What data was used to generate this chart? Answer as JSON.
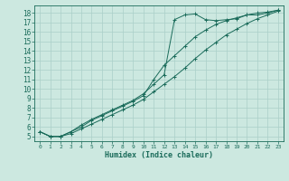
{
  "xlabel": "Humidex (Indice chaleur)",
  "bg_color": "#cce8e0",
  "grid_color": "#aacfc8",
  "line_color": "#1a6b5a",
  "xlim": [
    -0.5,
    23.5
  ],
  "ylim": [
    4.5,
    18.8
  ],
  "xticks": [
    0,
    1,
    2,
    3,
    4,
    5,
    6,
    7,
    8,
    9,
    10,
    11,
    12,
    13,
    14,
    15,
    16,
    17,
    18,
    19,
    20,
    21,
    22,
    23
  ],
  "yticks": [
    5,
    6,
    7,
    8,
    9,
    10,
    11,
    12,
    13,
    14,
    15,
    16,
    17,
    18
  ],
  "line1_x": [
    0,
    1,
    2,
    3,
    4,
    5,
    6,
    7,
    8,
    9,
    10,
    11,
    12,
    13,
    14,
    15,
    16,
    17,
    18,
    19,
    20,
    21,
    22,
    23
  ],
  "line1_y": [
    5.5,
    5.0,
    5.0,
    5.5,
    6.2,
    6.8,
    7.3,
    7.8,
    8.3,
    8.8,
    9.5,
    10.5,
    11.5,
    17.3,
    17.8,
    17.9,
    17.3,
    17.2,
    17.3,
    17.4,
    17.8,
    17.8,
    18.0,
    18.3
  ],
  "line2_x": [
    0,
    1,
    2,
    3,
    4,
    5,
    6,
    7,
    8,
    9,
    10,
    11,
    12,
    13,
    14,
    15,
    16,
    17,
    18,
    19,
    20,
    21,
    22,
    23
  ],
  "line2_y": [
    5.5,
    5.0,
    5.0,
    5.5,
    6.0,
    6.7,
    7.2,
    7.7,
    8.2,
    8.7,
    9.3,
    11.0,
    12.5,
    13.5,
    14.5,
    15.5,
    16.2,
    16.8,
    17.2,
    17.5,
    17.8,
    18.0,
    18.1,
    18.3
  ],
  "line3_x": [
    0,
    1,
    2,
    3,
    4,
    5,
    6,
    7,
    8,
    9,
    10,
    11,
    12,
    13,
    14,
    15,
    16,
    17,
    18,
    19,
    20,
    21,
    22,
    23
  ],
  "line3_y": [
    5.5,
    5.0,
    5.0,
    5.3,
    5.8,
    6.3,
    6.8,
    7.3,
    7.8,
    8.3,
    8.9,
    9.7,
    10.5,
    11.3,
    12.2,
    13.2,
    14.1,
    14.9,
    15.7,
    16.3,
    16.9,
    17.4,
    17.8,
    18.2
  ]
}
